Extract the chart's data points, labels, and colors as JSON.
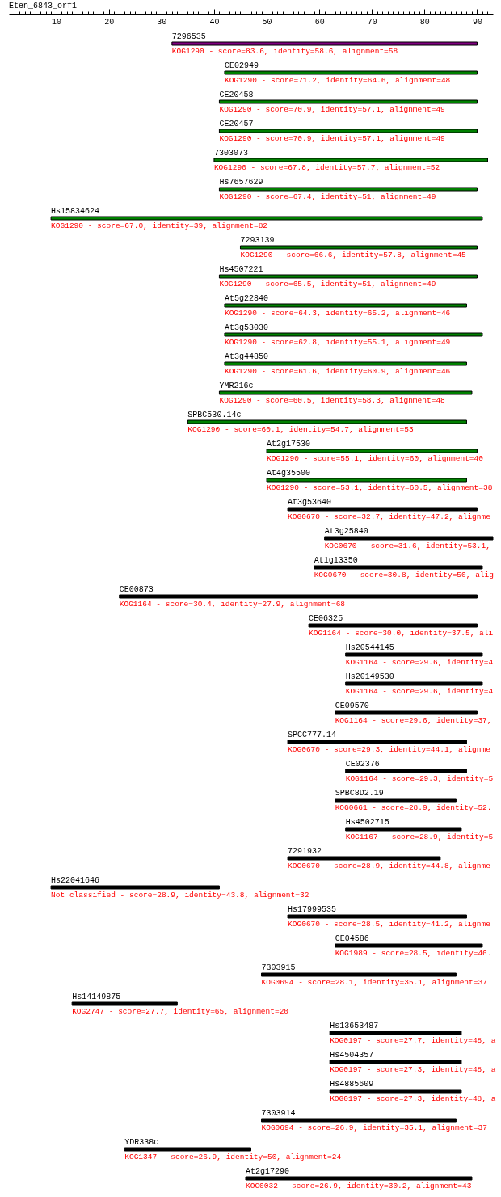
{
  "chart_data": {
    "type": "bar",
    "orientation": "horizontal",
    "title": "Eten_6843_orf1",
    "categories": [
      "7296535",
      "CE02949",
      "CE20458",
      "CE20457",
      "7303073",
      "Hs7657629",
      "Hs15834624",
      "7293139",
      "Hs4507221",
      "At5g22840",
      "At3g53030",
      "At3g44850",
      "YMR216c",
      "SPBC530.14c",
      "At2g17530",
      "At4g35500",
      "At3g53640",
      "At3g25840",
      "At1g13350",
      "CE00873",
      "CE06325",
      "Hs20544145",
      "Hs20149530",
      "CE09570",
      "SPCC777.14",
      "CE02376",
      "SPBC8D2.19",
      "Hs4502715",
      "7291932",
      "Hs22041646",
      "Hs17999535",
      "CE04586",
      "7303915",
      "Hs14149875",
      "Hs13653487",
      "Hs4504357",
      "Hs4885609",
      "7303914",
      "YDR338c",
      "At2g17290"
    ],
    "base": [
      32,
      42,
      41,
      41,
      40,
      41,
      9,
      45,
      41,
      42,
      42,
      42,
      41,
      35,
      50,
      50,
      54,
      61,
      59,
      22,
      58,
      65,
      65,
      63,
      54,
      65,
      63,
      65,
      54,
      9,
      54,
      63,
      49,
      13,
      62,
      62,
      62,
      49,
      23,
      46
    ],
    "values": [
      58,
      48,
      49,
      49,
      52,
      49,
      82,
      45,
      49,
      46,
      49,
      46,
      48,
      53,
      40,
      38,
      36,
      32,
      32,
      68,
      32,
      26,
      26,
      27,
      34,
      23,
      23,
      22,
      29,
      32,
      34,
      28,
      37,
      20,
      25,
      25,
      25,
      37,
      24,
      43
    ],
    "colors": [
      "#800080",
      "#008000",
      "#008000",
      "#008000",
      "#008000",
      "#008000",
      "#008000",
      "#008000",
      "#008000",
      "#008000",
      "#008000",
      "#008000",
      "#008000",
      "#008000",
      "#008000",
      "#008000",
      "#000000",
      "#000000",
      "#000000",
      "#000000",
      "#000000",
      "#000000",
      "#000000",
      "#000000",
      "#000000",
      "#000000",
      "#000000",
      "#000000",
      "#000000",
      "#000000",
      "#000000",
      "#000000",
      "#000000",
      "#000000",
      "#000000",
      "#000000",
      "#000000",
      "#000000",
      "#000000",
      "#000000"
    ],
    "value_labels": [
      "KOG1290 - score=83.6, identity=58.6, alignment=58",
      "KOG1290 - score=71.2, identity=64.6, alignment=48",
      "KOG1290 - score=70.9, identity=57.1, alignment=49",
      "KOG1290 - score=70.9, identity=57.1, alignment=49",
      "KOG1290 - score=67.8, identity=57.7, alignment=52",
      "KOG1290 - score=67.4, identity=51, alignment=49",
      "KOG1290 - score=67.0, identity=39, alignment=82",
      "KOG1290 - score=66.6, identity=57.8, alignment=45",
      "KOG1290 - score=65.5, identity=51, alignment=49",
      "KOG1290 - score=64.3, identity=65.2, alignment=46",
      "KOG1290 - score=62.8, identity=55.1, alignment=49",
      "KOG1290 - score=61.6, identity=60.9, alignment=46",
      "KOG1290 - score=60.5, identity=58.3, alignment=48",
      "KOG1290 - score=60.1, identity=54.7, alignment=53",
      "KOG1290 - score=55.1, identity=60, alignment=40",
      "KOG1290 - score=53.1, identity=60.5, alignment=38",
      "KOG0670 - score=32.7, identity=47.2, alignme",
      "KOG0670 - score=31.6, identity=53.1,",
      "KOG0670 - score=30.8, identity=50, alig",
      "KOG1164 - score=30.4, identity=27.9, alignment=68",
      "KOG1164 - score=30.0, identity=37.5, ali",
      "KOG1164 - score=29.6, identity=4",
      "KOG1164 - score=29.6, identity=4",
      "KOG1164 - score=29.6, identity=37,",
      "KOG0670 - score=29.3, identity=44.1, alignme",
      "KOG1164 - score=29.3, identity=5",
      "KOG0661 - score=28.9, identity=52.",
      "KOG1167 - score=28.9, identity=5",
      "KOG0670 - score=28.9, identity=44.8, alignme",
      "Not classified - score=28.9, identity=43.8, alignment=32",
      "KOG0670 - score=28.5, identity=41.2, alignme",
      "KOG1989 - score=28.5, identity=46.",
      "KOG0694 - score=28.1, identity=35.1, alignment=37",
      "KOG2747 - score=27.7, identity=65, alignment=20",
      "KOG0197 - score=27.7, identity=48, a",
      "KOG0197 - score=27.3, identity=48, a",
      "KOG0197 - score=27.3, identity=48, a",
      "KOG0694 - score=26.9, identity=35.1, alignment=37",
      "KOG1347 - score=26.9, identity=50, alignment=24",
      "KOG0032 - score=26.9, identity=30.2, alignment=43"
    ],
    "xlim": [
      1,
      93
    ],
    "xticks": [
      {
        "value": 2,
        "label": null
      },
      {
        "value": 3,
        "label": null
      },
      {
        "value": 4,
        "label": null
      },
      {
        "value": 5,
        "label": null
      },
      {
        "value": 6,
        "label": null
      },
      {
        "value": 7,
        "label": null
      },
      {
        "value": 8,
        "label": null
      },
      {
        "value": 9,
        "label": null
      },
      10,
      {
        "value": 11,
        "label": null
      },
      {
        "value": 12,
        "label": null
      },
      {
        "value": 13,
        "label": null
      },
      {
        "value": 14,
        "label": null
      },
      {
        "value": 15,
        "label": null
      },
      {
        "value": 16,
        "label": null
      },
      {
        "value": 17,
        "label": null
      },
      {
        "value": 18,
        "label": null
      },
      {
        "value": 19,
        "label": null
      },
      20,
      {
        "value": 21,
        "label": null
      },
      {
        "value": 22,
        "label": null
      },
      {
        "value": 23,
        "label": null
      },
      {
        "value": 24,
        "label": null
      },
      {
        "value": 25,
        "label": null
      },
      {
        "value": 26,
        "label": null
      },
      {
        "value": 27,
        "label": null
      },
      {
        "value": 28,
        "label": null
      },
      {
        "value": 29,
        "label": null
      },
      30,
      {
        "value": 31,
        "label": null
      },
      {
        "value": 32,
        "label": null
      },
      {
        "value": 33,
        "label": null
      },
      {
        "value": 34,
        "label": null
      },
      {
        "value": 35,
        "label": null
      },
      {
        "value": 36,
        "label": null
      },
      {
        "value": 37,
        "label": null
      },
      {
        "value": 38,
        "label": null
      },
      {
        "value": 39,
        "label": null
      },
      40,
      {
        "value": 41,
        "label": null
      },
      {
        "value": 42,
        "label": null
      },
      {
        "value": 43,
        "label": null
      },
      {
        "value": 44,
        "label": null
      },
      {
        "value": 45,
        "label": null
      },
      {
        "value": 46,
        "label": null
      },
      {
        "value": 47,
        "label": null
      },
      {
        "value": 48,
        "label": null
      },
      {
        "value": 49,
        "label": null
      },
      50,
      {
        "value": 51,
        "label": null
      },
      {
        "value": 52,
        "label": null
      },
      {
        "value": 53,
        "label": null
      },
      {
        "value": 54,
        "label": null
      },
      {
        "value": 55,
        "label": null
      },
      {
        "value": 56,
        "label": null
      },
      {
        "value": 57,
        "label": null
      },
      {
        "value": 58,
        "label": null
      },
      {
        "value": 59,
        "label": null
      },
      60,
      {
        "value": 61,
        "label": null
      },
      {
        "value": 62,
        "label": null
      },
      {
        "value": 63,
        "label": null
      },
      {
        "value": 64,
        "label": null
      },
      {
        "value": 65,
        "label": null
      },
      {
        "value": 66,
        "label": null
      },
      {
        "value": 67,
        "label": null
      },
      {
        "value": 68,
        "label": null
      },
      {
        "value": 69,
        "label": null
      },
      70,
      {
        "value": 71,
        "label": null
      },
      {
        "value": 72,
        "label": null
      },
      {
        "value": 73,
        "label": null
      },
      {
        "value": 74,
        "label": null
      },
      {
        "value": 75,
        "label": null
      },
      {
        "value": 76,
        "label": null
      },
      {
        "value": 77,
        "label": null
      },
      {
        "value": 78,
        "label": null
      },
      {
        "value": 79,
        "label": null
      },
      80,
      {
        "value": 81,
        "label": null
      },
      {
        "value": 82,
        "label": null
      },
      {
        "value": 83,
        "label": null
      },
      {
        "value": 84,
        "label": null
      },
      {
        "value": 85,
        "label": null
      },
      {
        "value": 86,
        "label": null
      },
      {
        "value": 87,
        "label": null
      },
      {
        "value": 88,
        "label": null
      },
      {
        "value": 89,
        "label": null
      },
      90,
      {
        "value": 91,
        "label": null
      },
      {
        "value": 92,
        "label": null
      }
    ]
  }
}
